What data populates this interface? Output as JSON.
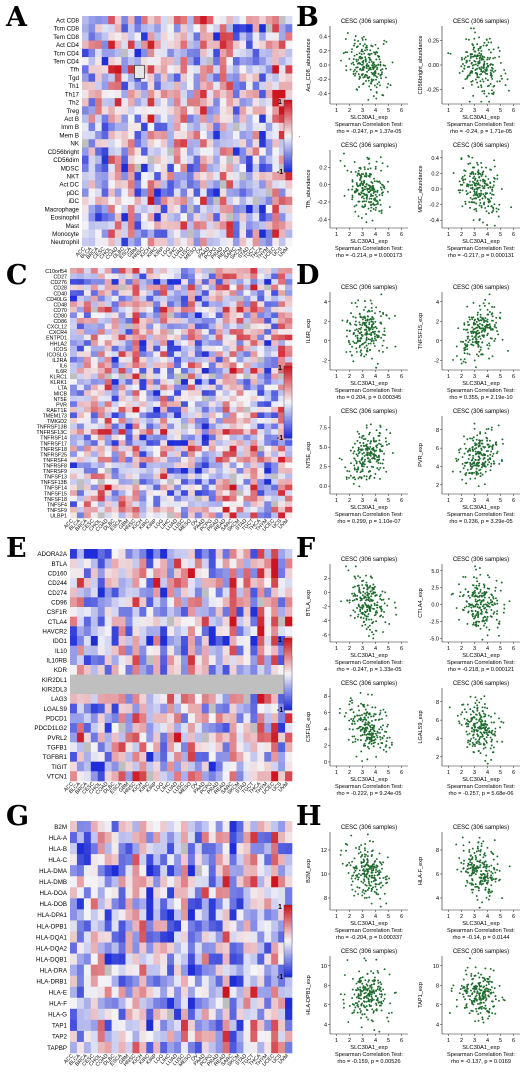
{
  "panels": {
    "A": {
      "letter": "A",
      "rows": [
        "Act CD8",
        "Tcm CD8",
        "Tem CD8",
        "Act CD4",
        "Tcm CD4",
        "Tem CD4",
        "Tfh",
        "Tgd",
        "Th1",
        "Th17",
        "Th2",
        "Treg",
        "Act B",
        "Imm B",
        "Mem B",
        "NK",
        "CD56bright",
        "CD56dim",
        "MDSC",
        "NKT",
        "Act DC",
        "pDC",
        "iDC",
        "Macrophage",
        "Eosinophil",
        "Mast",
        "Monocyte",
        "Neutrophil"
      ],
      "colorbar": {
        "top": "1",
        "mid": "-0",
        "bottom": "-1"
      }
    },
    "C": {
      "letter": "C",
      "rows": [
        "C10orf54",
        "CD27",
        "CD276",
        "CD28",
        "CD40",
        "CD40LG",
        "CD48",
        "CD70",
        "CD80",
        "CD86",
        "CXCL12",
        "CXCR4",
        "ENTPD1",
        "HHLA2",
        "ICOS",
        "ICOSLG",
        "IL2RA",
        "IL6",
        "IL6R",
        "KLRC1",
        "KLRK1",
        "LTA",
        "MICB",
        "NT5E",
        "PVR",
        "RAET1E",
        "TMEM173",
        "TMIGD2",
        "TNFRSF13B",
        "TNFRSF13C",
        "TNFRSF14",
        "TNFRSF17",
        "TNFRSF18",
        "TNFRSF25",
        "TNFRSF4",
        "TNFRSF8",
        "TNFRSF9",
        "TNFSF13",
        "TNFSF13B",
        "TNFSF14",
        "TNFSF15",
        "TNFSF18",
        "TNFSF4",
        "TNFSF9",
        "ULBP1"
      ],
      "colorbar": {
        "top": "1",
        "mid": "",
        "bottom": "-1"
      }
    },
    "E": {
      "letter": "E",
      "rows": [
        "ADORA2A",
        "BTLA",
        "CD160",
        "CD244",
        "CD274",
        "CD96",
        "CSF1R",
        "CTLA4",
        "HAVCR2",
        "IDO1",
        "IL10",
        "IL10RB",
        "KDR",
        "KIR2DL1",
        "KIR2DL3",
        "LAG3",
        "LGALS9",
        "PDCD1",
        "PDCD1LG2",
        "PVRL2",
        "TGFB1",
        "TGFBR1",
        "TIGIT",
        "VTCN1"
      ],
      "colorbar": {
        "top": "1",
        "mid": "",
        "bottom": "-1"
      }
    },
    "G": {
      "letter": "G",
      "rows": [
        "B2M",
        "HLA-A",
        "HLA-B",
        "HLA-C",
        "HLA-DMA",
        "HLA-DMB",
        "HLA-DOA",
        "HLA-DOB",
        "HLA-DPA1",
        "HLA-DPB1",
        "HLA-DQA1",
        "HLA-DQA2",
        "HLA-DQB1",
        "HLA-DRA",
        "HLA-DRB1",
        "HLA-E",
        "HLA-F",
        "HLA-G",
        "TAP1",
        "TAP2",
        "TAPBP"
      ],
      "colorbar": {
        "top": "1",
        "mid": "",
        "bottom": "-1"
      }
    },
    "cancers": [
      "ACC",
      "BLCA",
      "BRCA",
      "CESC",
      "CHOL",
      "COAD",
      "DLBC",
      "ESCA",
      "GBM",
      "HNSC",
      "KICH",
      "KIRC",
      "KIRP",
      "LGG",
      "LIHC",
      "LUAD",
      "LUSC",
      "MESO",
      "OV",
      "PAAD",
      "PCPG",
      "PRAD",
      "READ",
      "SARC",
      "SKCM",
      "STAD",
      "TGCT",
      "THCA",
      "THYM",
      "UCEC",
      "UCS",
      "UVM"
    ],
    "B": {
      "letter": "B"
    },
    "D": {
      "letter": "D"
    },
    "F": {
      "letter": "F"
    },
    "H": {
      "letter": "H"
    }
  },
  "scatter_common": {
    "title": "CESC (306 samples)",
    "xlabel": "SLC30A1_exp",
    "test_label": "Spearman Correlation Test:"
  },
  "chart_data": [
    {
      "type": "heatmap",
      "panel": "A",
      "title": "",
      "rows_ref": "panels.A.rows",
      "columns_ref": "panels.cancers",
      "scale": [
        -1,
        1
      ]
    },
    {
      "type": "heatmap",
      "panel": "C",
      "title": "",
      "rows_ref": "panels.C.rows",
      "columns_ref": "panels.cancers",
      "scale": [
        -1,
        1
      ]
    },
    {
      "type": "heatmap",
      "panel": "E",
      "title": "",
      "rows_ref": "panels.E.rows",
      "columns_ref": "panels.cancers",
      "scale": [
        -1,
        1
      ]
    },
    {
      "type": "heatmap",
      "panel": "G",
      "title": "",
      "rows_ref": "panels.G.rows",
      "columns_ref": "panels.cancers",
      "scale": [
        -1,
        1
      ]
    },
    {
      "type": "scatter",
      "panel": "B",
      "title": "CESC (306 samples)",
      "ylabel": "Act_CD8_abundance",
      "xlabel": "SLC30A1_exp",
      "stat": "rho = -0.247, p = 1.37e-05",
      "xticks": [
        "1",
        "2",
        "3",
        "4",
        "5",
        "6"
      ],
      "yticks": [
        "0.4",
        "0.2",
        "0.0",
        "-0.2",
        "-0.4"
      ],
      "xlim": [
        0.5,
        6.5
      ],
      "ylim": [
        -0.55,
        0.55
      ],
      "rho": -0.247
    },
    {
      "type": "scatter",
      "panel": "B",
      "title": "CESC (306 samples)",
      "ylabel": "CD56bright_abundance",
      "xlabel": "SLC30A1_exp",
      "stat": "rho = -0.24, p = 1.71e-05",
      "xticks": [
        "1",
        "2",
        "3",
        "4",
        "5",
        "6"
      ],
      "yticks": [
        "0.25",
        "0.00",
        "-0.25"
      ],
      "xlim": [
        0.5,
        6.5
      ],
      "ylim": [
        -0.4,
        0.4
      ],
      "rho": -0.24
    },
    {
      "type": "scatter",
      "panel": "B",
      "title": "CESC (306 samples)",
      "ylabel": "Tfh_abundance",
      "xlabel": "SLC30A1_exp",
      "stat": "rho = -0.214, p = 0.000173",
      "xticks": [
        "1",
        "2",
        "3",
        "4",
        "5",
        "6"
      ],
      "yticks": [
        "0.2",
        "0.0",
        "-0.2",
        "-0.4"
      ],
      "xlim": [
        0.5,
        6.5
      ],
      "ylim": [
        -0.5,
        0.4
      ],
      "rho": -0.214
    },
    {
      "type": "scatter",
      "panel": "B",
      "title": "CESC (306 samples)",
      "ylabel": "MDSC_abundance",
      "xlabel": "SLC30A1_exp",
      "stat": "rho = -0.217, p = 0.000131",
      "xticks": [
        "1",
        "2",
        "3",
        "4",
        "5",
        "6"
      ],
      "yticks": [
        "0.4",
        "0.2",
        "0.0",
        "-0.2",
        "-0.4"
      ],
      "xlim": [
        0.5,
        6.5
      ],
      "ylim": [
        -0.5,
        0.5
      ],
      "rho": -0.217
    },
    {
      "type": "scatter",
      "panel": "D",
      "title": "CESC (306 samples)",
      "ylabel": "IL6R_exp",
      "xlabel": "SLC30A1_exp",
      "stat": "rho = 0.204, p = 0.000345",
      "xticks": [
        "1",
        "2",
        "3",
        "4",
        "5",
        "6"
      ],
      "yticks": [
        "4",
        "2",
        "0",
        "-2"
      ],
      "xlim": [
        0.5,
        6.5
      ],
      "ylim": [
        -3,
        5
      ],
      "rho": 0.204
    },
    {
      "type": "scatter",
      "panel": "D",
      "title": "CESC (306 samples)",
      "ylabel": "TNFSF15_exp",
      "xlabel": "SLC30A1_exp",
      "stat": "rho = 0.355, p = 2.19e-10",
      "xticks": [
        "1",
        "2",
        "3",
        "4",
        "5",
        "6"
      ],
      "yticks": [
        "4",
        "2",
        "0",
        "-2"
      ],
      "xlim": [
        0.5,
        6.5
      ],
      "ylim": [
        -3,
        5
      ],
      "rho": 0.355
    },
    {
      "type": "scatter",
      "panel": "D",
      "title": "CESC (306 samples)",
      "ylabel": "NT5E_exp",
      "xlabel": "SLC30A1_exp",
      "stat": "rho = 0.299, p = 1.10e-07",
      "xticks": [
        "1",
        "2",
        "3",
        "4",
        "5",
        "6"
      ],
      "yticks": [
        "7.5",
        "5.0",
        "2.5",
        "0.0"
      ],
      "xlim": [
        0.5,
        6.5
      ],
      "ylim": [
        -1,
        9
      ],
      "rho": 0.299
    },
    {
      "type": "scatter",
      "panel": "D",
      "title": "CESC (306 samples)",
      "ylabel": "PVR_exp",
      "xlabel": "SLC30A1_exp",
      "stat": "rho = 0.236, p = 3.29e-05",
      "xticks": [
        "1",
        "2",
        "3",
        "4",
        "5",
        "6"
      ],
      "yticks": [
        "8",
        "6",
        "4",
        "2"
      ],
      "xlim": [
        0.5,
        6.5
      ],
      "ylim": [
        1,
        9.5
      ],
      "rho": 0.236
    },
    {
      "type": "scatter",
      "panel": "F",
      "title": "CESC (306 samples)",
      "ylabel": "BTLA_exp",
      "xlabel": "SLC30A1_exp",
      "stat": "rho = -0.247, p = 1.33e-05",
      "xticks": [
        "1",
        "2",
        "3",
        "4",
        "5",
        "6"
      ],
      "yticks": [
        "2",
        "0",
        "-2",
        "-4",
        "-6"
      ],
      "xlim": [
        0.5,
        6.5
      ],
      "ylim": [
        -7,
        4
      ],
      "rho": -0.247
    },
    {
      "type": "scatter",
      "panel": "F",
      "title": "CESC (306 samples)",
      "ylabel": "CTLA4_exp",
      "xlabel": "SLC30A1_exp",
      "stat": "rho = -0.218, p = 0.000121",
      "xticks": [
        "1",
        "2",
        "3",
        "4",
        "5",
        "6"
      ],
      "yticks": [
        "5.0",
        "2.5",
        "0.0",
        "-2.5",
        "-5.0"
      ],
      "xlim": [
        0.5,
        6.5
      ],
      "ylim": [
        -5.5,
        6
      ],
      "rho": -0.218
    },
    {
      "type": "scatter",
      "panel": "F",
      "title": "CESC (306 samples)",
      "ylabel": "CSF1R_exp",
      "xlabel": "SLC30A1_exp",
      "stat": "rho = -0.222, p = 9.24e-05",
      "xticks": [
        "1",
        "2",
        "3",
        "4",
        "5",
        "6"
      ],
      "yticks": [
        "8",
        "6",
        "4",
        "2",
        "0"
      ],
      "xlim": [
        0.5,
        6.5
      ],
      "ylim": [
        -0.5,
        9
      ],
      "rho": -0.222
    },
    {
      "type": "scatter",
      "panel": "F",
      "title": "CESC (306 samples)",
      "ylabel": "LGALS9_exp",
      "xlabel": "SLC30A1_exp",
      "stat": "rho = -0.257, p = 5.68e-06",
      "xticks": [
        "1",
        "2",
        "3",
        "4",
        "5",
        "6"
      ],
      "yticks": [
        "8",
        "6",
        "4",
        "2"
      ],
      "xlim": [
        0.5,
        6.5
      ],
      "ylim": [
        1,
        9.5
      ],
      "rho": -0.257
    },
    {
      "type": "scatter",
      "panel": "H",
      "title": "CESC (306 samples)",
      "ylabel": "B2M_exp",
      "xlabel": "SLC30A1_exp",
      "stat": "rho = -0.204, p = 0.000337",
      "xticks": [
        "1",
        "2",
        "3",
        "4",
        "5",
        "6"
      ],
      "yticks": [
        "12",
        "10",
        "8"
      ],
      "xlim": [
        0.5,
        6.5
      ],
      "ylim": [
        7,
        13.5
      ],
      "rho": -0.204
    },
    {
      "type": "scatter",
      "panel": "H",
      "title": "CESC (306 samples)",
      "ylabel": "HLA-F_exp",
      "xlabel": "SLC30A1_exp",
      "stat": "rho = -0.14, p = 0.0144",
      "xticks": [
        "1",
        "2",
        "3",
        "4",
        "5",
        "6"
      ],
      "yticks": [
        "8",
        "6",
        "4"
      ],
      "xlim": [
        0.5,
        6.5
      ],
      "ylim": [
        3,
        9.5
      ],
      "rho": -0.14
    },
    {
      "type": "scatter",
      "panel": "H",
      "title": "CESC (306 samples)",
      "ylabel": "HLA-DPB1_exp",
      "xlabel": "SLC30A1_exp",
      "stat": "rho = -0.159, p = 0.00526",
      "xticks": [
        "1",
        "2",
        "3",
        "4",
        "5",
        "6"
      ],
      "yticks": [
        "10",
        "8",
        "6",
        "4"
      ],
      "xlim": [
        0.5,
        6.5
      ],
      "ylim": [
        3,
        11
      ],
      "rho": -0.159
    },
    {
      "type": "scatter",
      "panel": "H",
      "title": "CESC (306 samples)",
      "ylabel": "TAP1_exp",
      "xlabel": "SLC30A1_exp",
      "stat": "rho = -0.137, p = 0.0169",
      "xticks": [
        "1",
        "2",
        "3",
        "4",
        "5",
        "6"
      ],
      "yticks": [
        "10",
        "8",
        "6",
        "4"
      ],
      "xlim": [
        0.5,
        6.5
      ],
      "ylim": [
        3,
        11
      ],
      "rho": -0.137
    }
  ]
}
